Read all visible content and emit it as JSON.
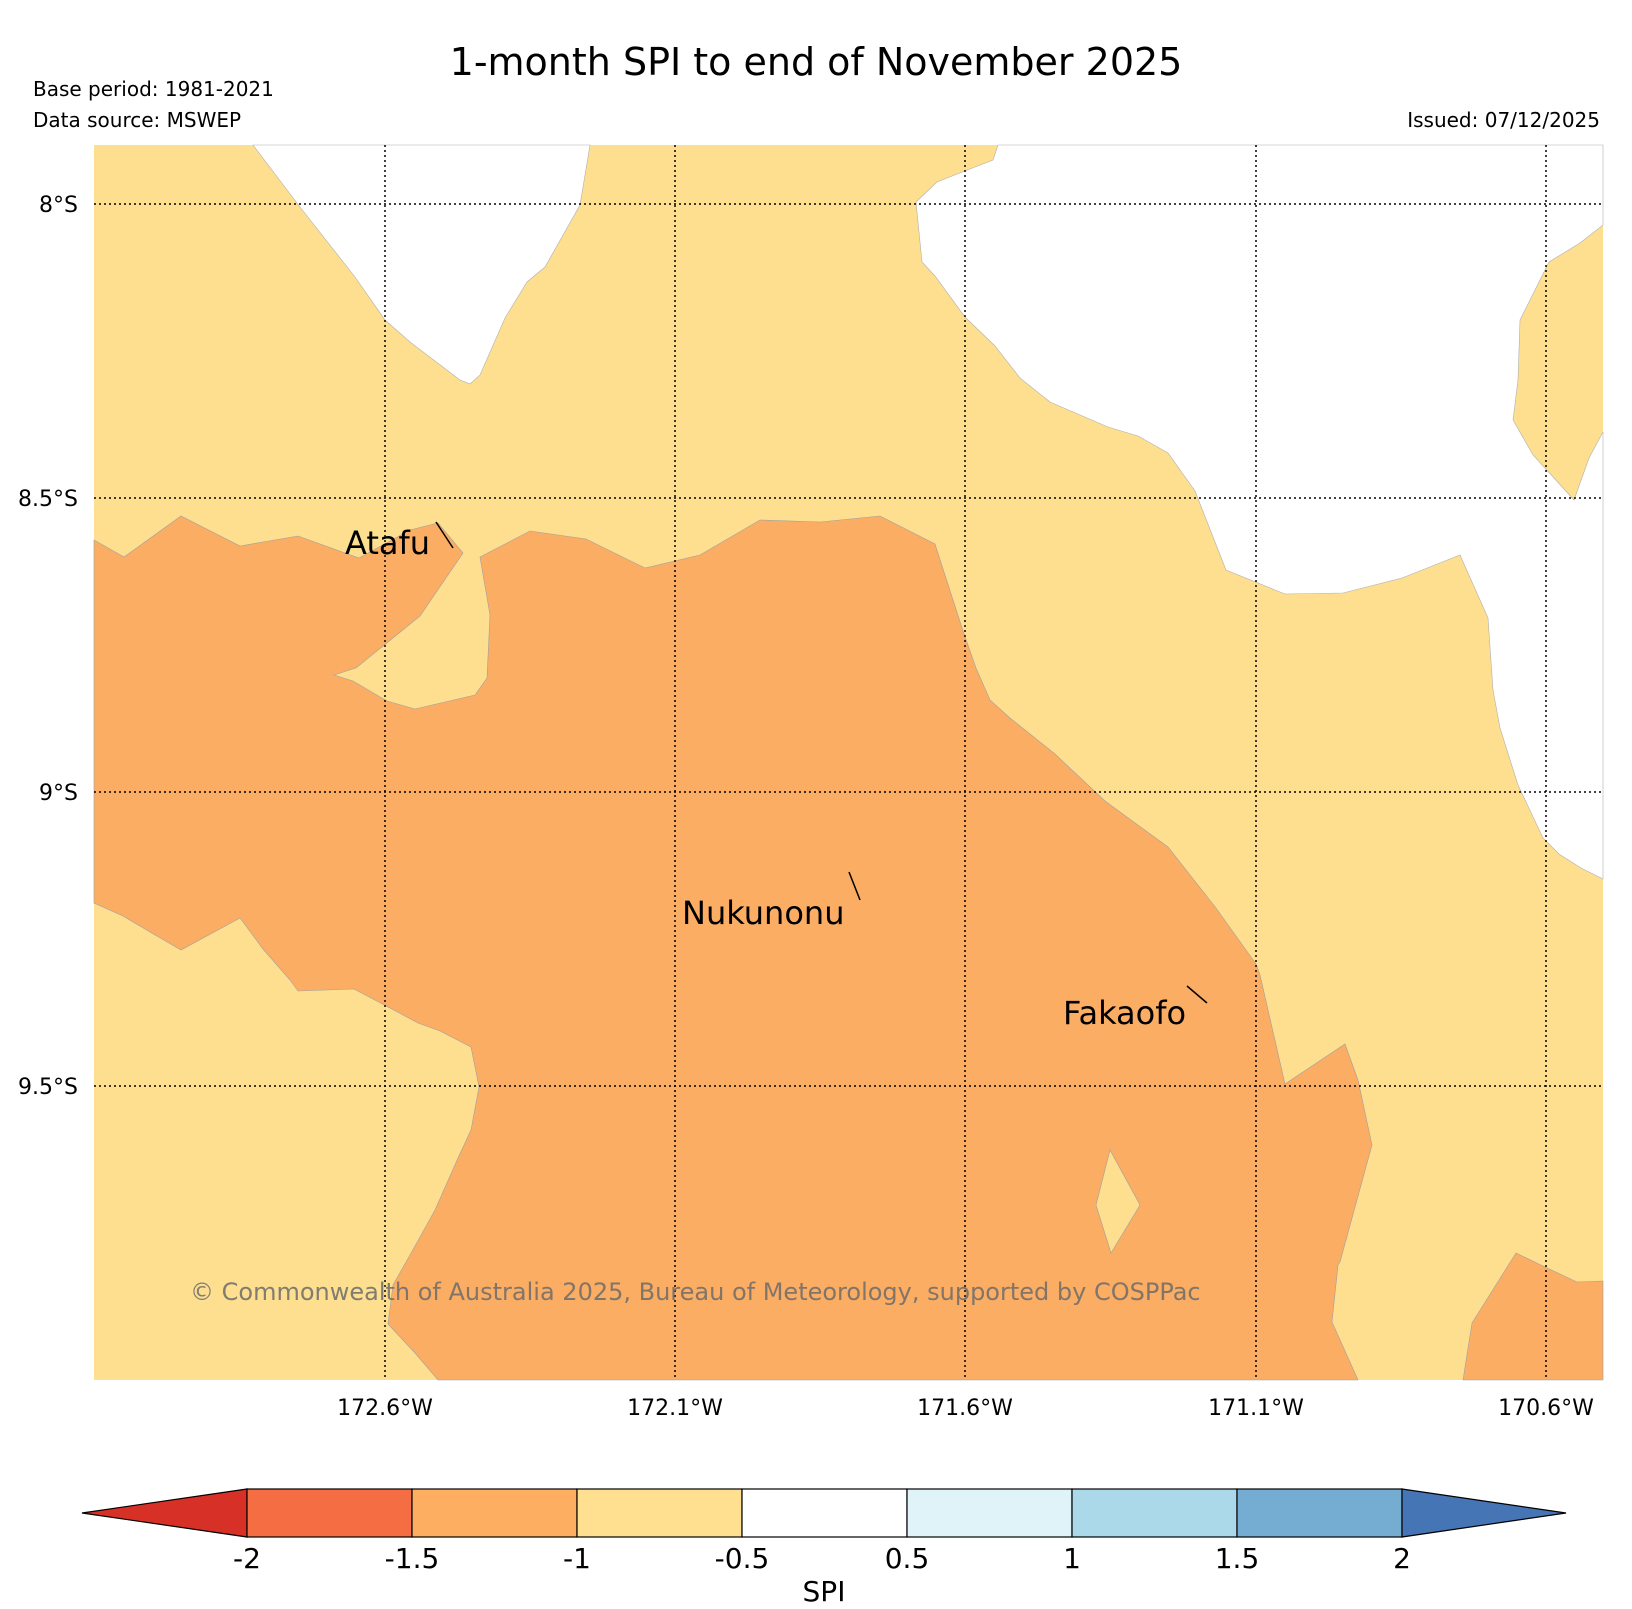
{
  "header": {
    "title": "1-month SPI to end of November 2025",
    "base_period": "Base period: 1981-2021",
    "data_source": "Data source: MSWEP",
    "issued": "Issued: 07/12/2025"
  },
  "map": {
    "lat_labels": [
      "8°S",
      "8.5°S",
      "9°S",
      "9.5°S"
    ],
    "lon_labels": [
      "172.6°W",
      "172.1°W",
      "171.6°W",
      "171.1°W",
      "170.6°W"
    ],
    "places": [
      "Atafu",
      "Nukunonu",
      "Fakaofo"
    ],
    "credit": "© Commonwealth of Australia 2025, Bureau of Meteorology, supported by COSPPac",
    "category_colors": {
      "dry_moderate": "#fbad63",
      "dry_mild": "#fddf8f"
    }
  },
  "colorbar": {
    "label": "SPI",
    "ticks": [
      "-2",
      "-1.5",
      "-1",
      "-0.5",
      "0.5",
      "1",
      "1.5",
      "2"
    ],
    "colors": [
      "#d73027",
      "#f46d43",
      "#fdae61",
      "#fee090",
      "#ffffff",
      "#e0f3f8",
      "#abd9e9",
      "#74add1",
      "#4575b4"
    ]
  }
}
